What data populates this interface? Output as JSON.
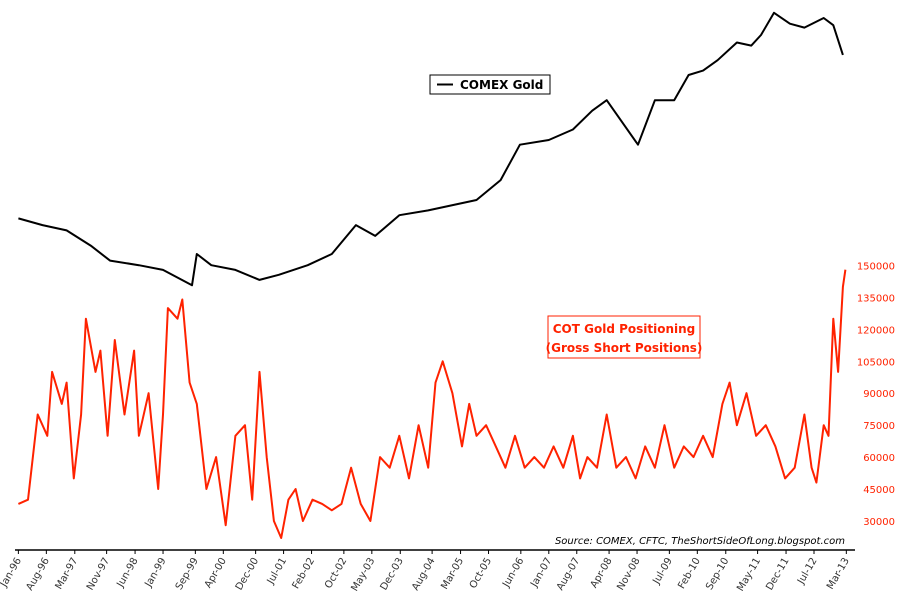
{
  "chart_data": {
    "type": "line",
    "source": "Source: COMEX, CFTC, TheShortSideOfLong.blogspot.com",
    "xlim": [
      1995.93,
      2013.35
    ],
    "xticks": [
      {
        "value": 1996.0,
        "label": "Jan-96"
      },
      {
        "value": 1996.58,
        "label": "Aug-96"
      },
      {
        "value": 1997.17,
        "label": "Mar-97"
      },
      {
        "value": 1997.83,
        "label": "Nov-97"
      },
      {
        "value": 1998.42,
        "label": "Jun-98"
      },
      {
        "value": 1999.0,
        "label": "Jan-99"
      },
      {
        "value": 1999.67,
        "label": "Sep-99"
      },
      {
        "value": 2000.25,
        "label": "Apr-00"
      },
      {
        "value": 2000.92,
        "label": "Dec-00"
      },
      {
        "value": 2001.5,
        "label": "Jul-01"
      },
      {
        "value": 2002.08,
        "label": "Feb-02"
      },
      {
        "value": 2002.75,
        "label": "Oct-02"
      },
      {
        "value": 2003.33,
        "label": "May-03"
      },
      {
        "value": 2003.92,
        "label": "Dec-03"
      },
      {
        "value": 2004.58,
        "label": "Aug-04"
      },
      {
        "value": 2005.17,
        "label": "Mar-05"
      },
      {
        "value": 2005.75,
        "label": "Oct-05"
      },
      {
        "value": 2006.42,
        "label": "Jun-06"
      },
      {
        "value": 2007.0,
        "label": "Jan-07"
      },
      {
        "value": 2007.58,
        "label": "Aug-07"
      },
      {
        "value": 2008.25,
        "label": "Apr-08"
      },
      {
        "value": 2008.83,
        "label": "Nov-08"
      },
      {
        "value": 2009.5,
        "label": "Jul-09"
      },
      {
        "value": 2010.08,
        "label": "Feb-10"
      },
      {
        "value": 2010.67,
        "label": "Sep-10"
      },
      {
        "value": 2011.33,
        "label": "May-11"
      },
      {
        "value": 2011.92,
        "label": "Dec-11"
      },
      {
        "value": 2012.5,
        "label": "Jul-12"
      },
      {
        "value": 2013.17,
        "label": "Mar-13"
      }
    ],
    "ylim": [
      34,
      1940
    ],
    "log_scale": true,
    "y2lim": [
      17300,
      270000
    ],
    "y2ticks": [
      30000,
      45000,
      60000,
      75000,
      90000,
      105000,
      120000,
      135000,
      150000
    ],
    "series": [
      {
        "name": "COMEX Gold",
        "color": "#000000",
        "axis": "y",
        "x": [
          1996.0,
          1996.5,
          1997.0,
          1997.5,
          1997.9,
          1998.5,
          1999.0,
          1999.6,
          1999.7,
          2000.0,
          2000.5,
          2001.0,
          2001.4,
          2002.0,
          2002.5,
          2003.0,
          2003.4,
          2003.9,
          2004.5,
          2005.5,
          2006.0,
          2006.4,
          2007.0,
          2007.5,
          2007.9,
          2008.2,
          2008.85,
          2009.2,
          2009.6,
          2009.9,
          2010.2,
          2010.5,
          2010.9,
          2011.2,
          2011.4,
          2011.67,
          2012.0,
          2012.3,
          2012.7,
          2012.9,
          2013.1
        ],
        "values": [
          405,
          385,
          370,
          330,
          295,
          285,
          275,
          245,
          310,
          285,
          275,
          255,
          265,
          285,
          310,
          385,
          355,
          415,
          430,
          465,
          540,
          705,
          730,
          790,
          910,
          985,
          705,
          985,
          985,
          1190,
          1230,
          1330,
          1520,
          1485,
          1608,
          1900,
          1750,
          1700,
          1827,
          1730,
          1384
        ]
      },
      {
        "name": "COT Gold Positioning",
        "name_detail": "(Gross Short Positions)",
        "color": "#ff2200",
        "axis": "y2",
        "x": [
          1996.0,
          1996.2,
          1996.4,
          1996.6,
          1996.7,
          1996.9,
          1997.0,
          1997.15,
          1997.3,
          1997.4,
          1997.6,
          1997.7,
          1997.85,
          1998.0,
          1998.2,
          1998.4,
          1998.5,
          1998.7,
          1998.9,
          1999.0,
          1999.1,
          1999.3,
          1999.4,
          1999.55,
          1999.7,
          1999.9,
          2000.1,
          2000.3,
          2000.5,
          2000.7,
          2000.85,
          2001.0,
          2001.15,
          2001.3,
          2001.45,
          2001.6,
          2001.75,
          2001.9,
          2002.1,
          2002.3,
          2002.5,
          2002.7,
          2002.9,
          2003.1,
          2003.3,
          2003.5,
          2003.7,
          2003.9,
          2004.1,
          2004.3,
          2004.5,
          2004.65,
          2004.8,
          2005.0,
          2005.2,
          2005.35,
          2005.5,
          2005.7,
          2005.9,
          2006.1,
          2006.3,
          2006.5,
          2006.7,
          2006.9,
          2007.1,
          2007.3,
          2007.5,
          2007.65,
          2007.8,
          2008.0,
          2008.2,
          2008.4,
          2008.6,
          2008.8,
          2009.0,
          2009.2,
          2009.4,
          2009.6,
          2009.8,
          2010.0,
          2010.2,
          2010.4,
          2010.6,
          2010.75,
          2010.9,
          2011.1,
          2011.3,
          2011.5,
          2011.7,
          2011.9,
          2012.1,
          2012.3,
          2012.45,
          2012.55,
          2012.7,
          2012.8,
          2012.9,
          2013.0,
          2013.1,
          2013.15
        ],
        "values": [
          38000,
          40000,
          80000,
          70000,
          100000,
          85000,
          95000,
          50000,
          80000,
          125000,
          100000,
          110000,
          70000,
          115000,
          80000,
          110000,
          70000,
          90000,
          45000,
          80000,
          130000,
          125000,
          134000,
          95000,
          85000,
          45000,
          60000,
          28000,
          70000,
          75000,
          40000,
          100000,
          60000,
          30000,
          22000,
          40000,
          45000,
          30000,
          40000,
          38000,
          35000,
          38000,
          55000,
          38000,
          30000,
          60000,
          55000,
          70000,
          50000,
          75000,
          55000,
          95000,
          105000,
          90000,
          65000,
          85000,
          70000,
          75000,
          65000,
          55000,
          70000,
          55000,
          60000,
          55000,
          65000,
          55000,
          70000,
          50000,
          60000,
          55000,
          80000,
          55000,
          60000,
          50000,
          65000,
          55000,
          75000,
          55000,
          65000,
          60000,
          70000,
          60000,
          85000,
          95000,
          75000,
          90000,
          70000,
          75000,
          65000,
          50000,
          55000,
          80000,
          55000,
          48000,
          75000,
          70000,
          125000,
          100000,
          140000,
          148000
        ]
      }
    ]
  }
}
